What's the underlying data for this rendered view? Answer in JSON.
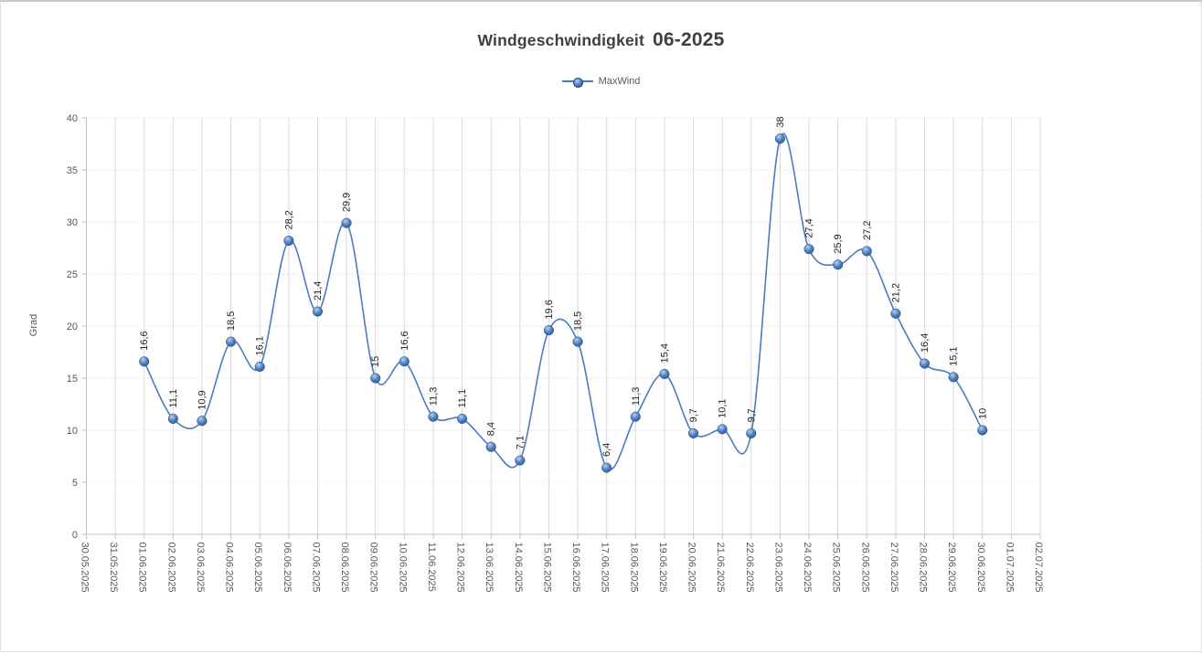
{
  "header": {
    "title_part1": "Windgeschwindigkeit",
    "title_part2": "06-2025"
  },
  "legend": {
    "items": [
      {
        "label": "MaxWind",
        "color": "#4a7cbe"
      }
    ]
  },
  "chart_data": {
    "type": "line",
    "title": "Windgeschwindigkeit 06-2025",
    "xlabel": "",
    "ylabel": "Grad",
    "ylim": [
      0,
      40
    ],
    "y_ticks": [
      0,
      5,
      10,
      15,
      20,
      25,
      30,
      35,
      40
    ],
    "grid": {
      "horizontal": "dotted",
      "vertical": "solid"
    },
    "legend_position": "top-center",
    "smooth": true,
    "categories": [
      "30.05.2025",
      "31.05.2025",
      "01.06.2025",
      "02.06.2025",
      "03.06.2025",
      "04.06.2025",
      "05.06.2025",
      "06.06.2025",
      "07.06.2025",
      "08.06.2025",
      "09.06.2025",
      "10.06.2025",
      "11.06.2025",
      "12.06.2025",
      "13.06.2025",
      "14.06.2025",
      "15.06.2025",
      "16.06.2025",
      "17.06.2025",
      "18.06.2025",
      "19.06.2025",
      "20.06.2025",
      "21.06.2025",
      "22.06.2025",
      "23.06.2025",
      "24.06.2025",
      "25.06.2025",
      "26.06.2025",
      "27.06.2025",
      "28.06.2025",
      "29.06.2025",
      "30.06.2025",
      "01.07.2025",
      "02.07.2025"
    ],
    "series": [
      {
        "name": "MaxWind",
        "color": "#4a7cbe",
        "marker": "sphere",
        "points": [
          {
            "category": "01.06.2025",
            "value": 16.6,
            "label": "16,6"
          },
          {
            "category": "02.06.2025",
            "value": 11.1,
            "label": "11,1"
          },
          {
            "category": "03.06.2025",
            "value": 10.9,
            "label": "10,9"
          },
          {
            "category": "04.06.2025",
            "value": 18.5,
            "label": "18,5"
          },
          {
            "category": "05.06.2025",
            "value": 16.1,
            "label": "16,1"
          },
          {
            "category": "06.06.2025",
            "value": 28.2,
            "label": "28,2"
          },
          {
            "category": "07.06.2025",
            "value": 21.4,
            "label": "21,4"
          },
          {
            "category": "08.06.2025",
            "value": 29.9,
            "label": "29,9"
          },
          {
            "category": "09.06.2025",
            "value": 15,
            "label": "15"
          },
          {
            "category": "10.06.2025",
            "value": 16.6,
            "label": "16,6"
          },
          {
            "category": "11.06.2025",
            "value": 11.3,
            "label": "11,3"
          },
          {
            "category": "12.06.2025",
            "value": 11.1,
            "label": "11,1"
          },
          {
            "category": "13.06.2025",
            "value": 8.4,
            "label": "8,4"
          },
          {
            "category": "14.06.2025",
            "value": 7.1,
            "label": "7,1"
          },
          {
            "category": "15.06.2025",
            "value": 19.6,
            "label": "19,6"
          },
          {
            "category": "16.06.2025",
            "value": 18.5,
            "label": "18,5"
          },
          {
            "category": "17.06.2025",
            "value": 6.4,
            "label": "6,4"
          },
          {
            "category": "18.06.2025",
            "value": 11.3,
            "label": "11,3"
          },
          {
            "category": "19.06.2025",
            "value": 15.4,
            "label": "15,4"
          },
          {
            "category": "20.06.2025",
            "value": 9.7,
            "label": "9,7"
          },
          {
            "category": "21.06.2025",
            "value": 10.1,
            "label": "10,1"
          },
          {
            "category": "22.06.2025",
            "value": 9.7,
            "label": "9,7"
          },
          {
            "category": "23.06.2025",
            "value": 38,
            "label": "38"
          },
          {
            "category": "24.06.2025",
            "value": 27.4,
            "label": "27,4"
          },
          {
            "category": "25.06.2025",
            "value": 25.9,
            "label": "25,9"
          },
          {
            "category": "26.06.2025",
            "value": 27.2,
            "label": "27,2"
          },
          {
            "category": "27.06.2025",
            "value": 21.2,
            "label": "21,2"
          },
          {
            "category": "28.06.2025",
            "value": 16.4,
            "label": "16,4"
          },
          {
            "category": "29.06.2025",
            "value": 15.1,
            "label": "15,1"
          },
          {
            "category": "30.06.2025",
            "value": 10,
            "label": "10"
          }
        ]
      }
    ],
    "colors": {
      "line": "#4a7cbe",
      "marker_edge": "#26497b",
      "marker_mid": "#4e7fc1",
      "marker_dark": "#2b5186",
      "marker_highlight": "#b5d0ee",
      "gridline": "#d9d9d9",
      "axis": "#bfbfbf",
      "tick_text": "#595959",
      "title_text": "#3f3f3f",
      "label_text": "#262626"
    }
  }
}
